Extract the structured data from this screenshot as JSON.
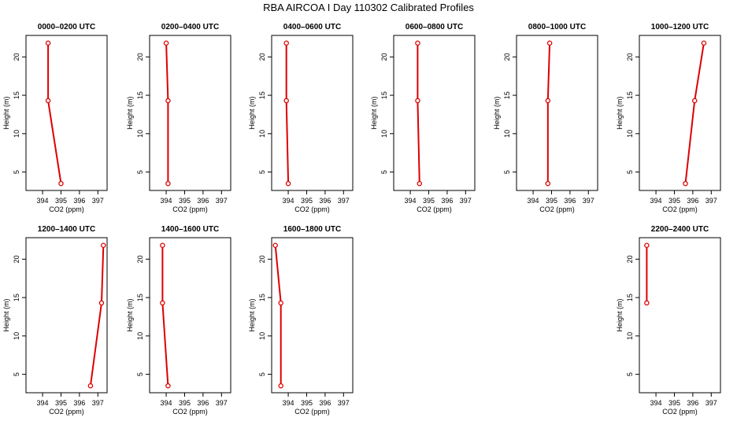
{
  "title": "RBA AIRCOA I  Day 110302  Calibrated Profiles",
  "colors": {
    "line": "#dd0000",
    "axis": "#000000",
    "background": "#ffffff"
  },
  "axes_common": {
    "xlabel": "CO2 (ppm)",
    "ylabel": "Height (m)",
    "xlim": [
      393.1,
      397.5
    ],
    "ylim": [
      2.6,
      22.8
    ],
    "xticks": [
      "394",
      "395",
      "396",
      "397"
    ],
    "yticks": [
      "5",
      "10",
      "15",
      "20"
    ]
  },
  "chart_data": [
    {
      "type": "line",
      "title": "0000–0200 UTC",
      "x": [
        395.0,
        394.3,
        394.3
      ],
      "y": [
        3.5,
        14.3,
        21.8
      ]
    },
    {
      "type": "line",
      "title": "0200–0400 UTC",
      "x": [
        394.1,
        394.1,
        394.0
      ],
      "y": [
        3.5,
        14.3,
        21.8
      ]
    },
    {
      "type": "line",
      "title": "0400–0600 UTC",
      "x": [
        394.0,
        393.9,
        393.9
      ],
      "y": [
        3.5,
        14.3,
        21.8
      ]
    },
    {
      "type": "line",
      "title": "0600–0800 UTC",
      "x": [
        394.5,
        394.4,
        394.4
      ],
      "y": [
        3.5,
        14.3,
        21.8
      ]
    },
    {
      "type": "line",
      "title": "0800–1000 UTC",
      "x": [
        394.8,
        394.8,
        394.9
      ],
      "y": [
        3.5,
        14.3,
        21.8
      ]
    },
    {
      "type": "line",
      "title": "1000–1200 UTC",
      "x": [
        395.6,
        396.1,
        396.6
      ],
      "y": [
        3.5,
        14.3,
        21.8
      ]
    },
    {
      "type": "line",
      "title": "1200–1400 UTC",
      "x": [
        396.6,
        397.2,
        397.3
      ],
      "y": [
        3.5,
        14.3,
        21.8
      ]
    },
    {
      "type": "line",
      "title": "1400–1600 UTC",
      "x": [
        394.1,
        393.8,
        393.8
      ],
      "y": [
        3.5,
        14.3,
        21.8
      ]
    },
    {
      "type": "line",
      "title": "1600–1800 UTC",
      "x": [
        393.6,
        393.6,
        393.3
      ],
      "y": [
        3.5,
        14.3,
        21.8
      ]
    },
    {
      "type": "line",
      "title": "2200–2400 UTC",
      "x": [
        393.5,
        393.5
      ],
      "y": [
        14.3,
        21.8
      ]
    }
  ]
}
